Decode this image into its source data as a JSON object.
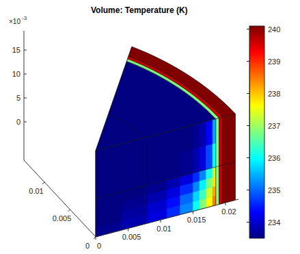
{
  "chart_data": {
    "type": "volume",
    "title": "Volume: Temperature (K)",
    "xlim": [
      0,
      0.022
    ],
    "xticks": [
      0,
      0.005,
      0.01,
      0.015,
      0.02
    ],
    "ylim": [
      0,
      0.014
    ],
    "yticks": [
      0,
      0.005,
      0.01
    ],
    "zlim": [
      -0.008,
      0.019
    ],
    "zticks": [
      0,
      {
        "value": 0.005,
        "label": "5"
      },
      {
        "value": 0.01,
        "label": "10"
      },
      {
        "value": 0.015,
        "label": "15"
      }
    ],
    "z_multiplier": {
      "text": "×10",
      "superscript": "-3"
    },
    "color_range": [
      233.5,
      240.1
    ],
    "color_ticks": [
      234,
      235,
      236,
      237,
      238,
      239,
      240
    ],
    "geometry": {
      "angle": 40,
      "z_bottom": -0.008,
      "z_top": 0.01,
      "split_radius": 0.0075,
      "split_height": 0
    },
    "layers": [
      {
        "r": [
          0,
          0.0185
        ],
        "temperature": 233.5
      },
      {
        "r": [
          0.0185,
          0.019
        ],
        "temperature": 236.8
      },
      {
        "r": [
          0.019,
          0.0195
        ],
        "temperature": 239.6
      },
      {
        "r": [
          0.0195,
          0.0215
        ],
        "temperature": 240.1
      }
    ],
    "front_field": {
      "x": [
        0,
        0.004,
        0.008,
        0.011,
        0.013,
        0.015,
        0.016,
        0.017,
        0.018,
        0.0185
      ],
      "z": [
        -0.008,
        -0.006,
        -0.004,
        -0.002,
        0,
        0.005,
        0.01
      ],
      "temperatures": [
        [
          233.6,
          233.8,
          234.1,
          234.6,
          235.2,
          236.0,
          236.8,
          237.6,
          238.5
        ],
        [
          233.5,
          233.7,
          234.0,
          234.4,
          235.0,
          235.7,
          236.4,
          237.3,
          238.2
        ],
        [
          233.5,
          233.6,
          233.8,
          234.1,
          234.6,
          235.2,
          235.9,
          236.8,
          237.8
        ],
        [
          233.5,
          233.5,
          233.6,
          233.8,
          234.1,
          234.6,
          235.2,
          236.1,
          237.3
        ],
        [
          233.5,
          233.5,
          233.5,
          233.5,
          233.6,
          233.8,
          234.1,
          234.8,
          236.0
        ],
        [
          233.5,
          233.5,
          233.5,
          233.5,
          233.5,
          233.6,
          233.8,
          234.3,
          235.4
        ]
      ]
    }
  }
}
